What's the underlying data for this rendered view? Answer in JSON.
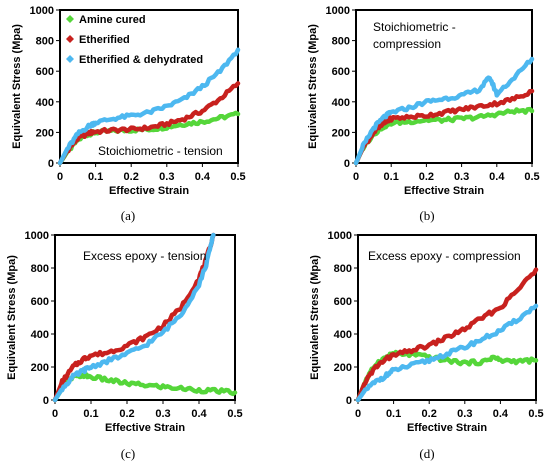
{
  "colors": {
    "amine": "#55d63a",
    "etherified": "#c8211e",
    "dehydrated": "#4db8f0",
    "frame": "#000000"
  },
  "chart_data": [
    {
      "panel": "a",
      "caption": "(a)",
      "type": "line",
      "annotation": "Stoichiometric - tension",
      "xlabel": "Effective Strain",
      "ylabel": "Equivalent Stress (Mpa)",
      "xlim": [
        0,
        0.5
      ],
      "ylim": [
        0,
        1000
      ],
      "xticks": [
        "0",
        "0.1",
        "0.2",
        "0.3",
        "0.4",
        "0.5"
      ],
      "yticks": [
        "0",
        "200",
        "400",
        "600",
        "800",
        "1000"
      ],
      "legend": "top-left",
      "series": [
        {
          "name": "Amine cured",
          "color_key": "amine",
          "x": [
            0,
            0.02,
            0.05,
            0.08,
            0.1,
            0.15,
            0.2,
            0.25,
            0.3,
            0.35,
            0.4,
            0.45,
            0.5
          ],
          "y": [
            0,
            70,
            150,
            190,
            200,
            210,
            215,
            220,
            235,
            255,
            270,
            295,
            320
          ]
        },
        {
          "name": "Etherified",
          "color_key": "etherified",
          "x": [
            0,
            0.02,
            0.05,
            0.08,
            0.1,
            0.15,
            0.2,
            0.25,
            0.3,
            0.35,
            0.4,
            0.45,
            0.5
          ],
          "y": [
            0,
            80,
            160,
            195,
            205,
            215,
            220,
            230,
            255,
            290,
            340,
            420,
            520
          ]
        },
        {
          "name": "Etherified & dehydrated",
          "color_key": "dehydrated",
          "x": [
            0,
            0.02,
            0.05,
            0.08,
            0.1,
            0.15,
            0.2,
            0.25,
            0.3,
            0.35,
            0.4,
            0.45,
            0.5
          ],
          "y": [
            0,
            90,
            190,
            240,
            265,
            290,
            310,
            330,
            370,
            420,
            500,
            600,
            740
          ]
        }
      ]
    },
    {
      "panel": "b",
      "caption": "(b)",
      "type": "line",
      "annotation_lines": [
        "Stoichiometric -",
        "compression"
      ],
      "xlabel": "Effective Strain",
      "ylabel": "Equivalent Stress (Mpa)",
      "xlim": [
        0,
        0.5
      ],
      "ylim": [
        0,
        1000
      ],
      "xticks": [
        "0",
        "0.1",
        "0.2",
        "0.3",
        "0.4",
        "0.5"
      ],
      "yticks": [
        "0",
        "200",
        "400",
        "600",
        "800",
        "1000"
      ],
      "series": [
        {
          "color_key": "amine",
          "x": [
            0,
            0.02,
            0.05,
            0.08,
            0.1,
            0.15,
            0.2,
            0.25,
            0.3,
            0.35,
            0.4,
            0.45,
            0.5
          ],
          "y": [
            0,
            100,
            190,
            240,
            260,
            270,
            280,
            280,
            290,
            300,
            320,
            340,
            340
          ]
        },
        {
          "color_key": "etherified",
          "x": [
            0,
            0.02,
            0.05,
            0.08,
            0.1,
            0.15,
            0.2,
            0.25,
            0.3,
            0.35,
            0.4,
            0.45,
            0.5
          ],
          "y": [
            0,
            100,
            200,
            260,
            290,
            300,
            310,
            330,
            350,
            370,
            390,
            420,
            470
          ]
        },
        {
          "color_key": "dehydrated",
          "x": [
            0,
            0.02,
            0.05,
            0.08,
            0.1,
            0.15,
            0.2,
            0.25,
            0.3,
            0.35,
            0.38,
            0.4,
            0.45,
            0.5
          ],
          "y": [
            0,
            110,
            230,
            300,
            330,
            360,
            400,
            420,
            440,
            480,
            560,
            450,
            560,
            680
          ]
        }
      ]
    },
    {
      "panel": "c",
      "caption": "(c)",
      "type": "line",
      "annotation": "Excess epoxy - tension",
      "xlabel": "Effective Strain",
      "ylabel": "Equivalent Stress (Mpa)",
      "xlim": [
        0,
        0.5
      ],
      "ylim": [
        0,
        1000
      ],
      "xticks": [
        "0",
        "0.1",
        "0.2",
        "0.3",
        "0.4",
        "0.5"
      ],
      "yticks": [
        "0",
        "200",
        "400",
        "600",
        "800",
        "1000"
      ],
      "series": [
        {
          "color_key": "amine",
          "x": [
            0,
            0.02,
            0.05,
            0.08,
            0.1,
            0.15,
            0.2,
            0.25,
            0.3,
            0.35,
            0.4,
            0.45,
            0.5
          ],
          "y": [
            0,
            70,
            140,
            150,
            140,
            120,
            100,
            90,
            80,
            70,
            60,
            55,
            45
          ]
        },
        {
          "color_key": "etherified",
          "x": [
            0,
            0.02,
            0.05,
            0.08,
            0.1,
            0.15,
            0.2,
            0.25,
            0.3,
            0.35,
            0.4,
            0.42,
            0.44
          ],
          "y": [
            0,
            110,
            200,
            250,
            270,
            290,
            330,
            380,
            450,
            560,
            740,
            850,
            1000
          ]
        },
        {
          "color_key": "dehydrated",
          "x": [
            0,
            0.02,
            0.05,
            0.08,
            0.1,
            0.15,
            0.2,
            0.25,
            0.3,
            0.35,
            0.4,
            0.42,
            0.44
          ],
          "y": [
            0,
            70,
            140,
            180,
            200,
            240,
            280,
            330,
            410,
            520,
            700,
            820,
            1000
          ]
        }
      ]
    },
    {
      "panel": "d",
      "caption": "(d)",
      "type": "line",
      "annotation": "Excess epoxy - compression",
      "xlabel": "Effective Strain",
      "ylabel": "Equivalent Stress (Mpa)",
      "xlim": [
        0,
        0.5
      ],
      "ylim": [
        0,
        1000
      ],
      "xticks": [
        "0",
        "0.1",
        "0.2",
        "0.3",
        "0.4",
        "0.5"
      ],
      "yticks": [
        "0",
        "200",
        "400",
        "600",
        "800",
        "1000"
      ],
      "series": [
        {
          "color_key": "amine",
          "x": [
            0,
            0.02,
            0.05,
            0.08,
            0.1,
            0.15,
            0.2,
            0.25,
            0.3,
            0.35,
            0.38,
            0.4,
            0.45,
            0.5
          ],
          "y": [
            0,
            110,
            220,
            260,
            280,
            275,
            260,
            240,
            225,
            230,
            260,
            240,
            235,
            240
          ]
        },
        {
          "color_key": "etherified",
          "x": [
            0,
            0.02,
            0.05,
            0.08,
            0.1,
            0.15,
            0.2,
            0.25,
            0.3,
            0.35,
            0.4,
            0.45,
            0.5
          ],
          "y": [
            0,
            110,
            200,
            250,
            270,
            300,
            330,
            380,
            430,
            500,
            560,
            670,
            790
          ]
        },
        {
          "color_key": "dehydrated",
          "x": [
            0,
            0.02,
            0.05,
            0.08,
            0.1,
            0.15,
            0.2,
            0.25,
            0.3,
            0.35,
            0.4,
            0.45,
            0.5
          ],
          "y": [
            0,
            60,
            110,
            150,
            180,
            210,
            240,
            280,
            320,
            370,
            420,
            490,
            570
          ]
        }
      ]
    }
  ]
}
